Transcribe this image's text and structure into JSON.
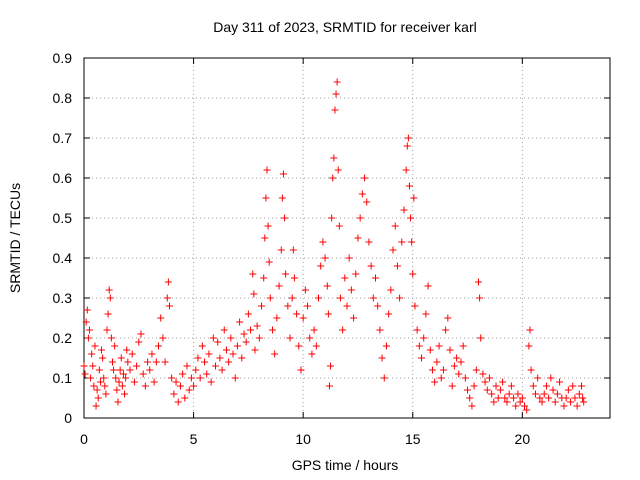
{
  "chart_data": {
    "type": "scatter",
    "title": "Day 311 of 2023, SRMTID for receiver karl",
    "xlabel": "GPS time / hours",
    "ylabel": "SRMTID / TECUs",
    "xlim": [
      0,
      24
    ],
    "ylim": [
      0,
      0.9
    ],
    "xticks": [
      0,
      5,
      10,
      15,
      20
    ],
    "xtick_labels": [
      "0",
      "5",
      "10",
      "15",
      "20"
    ],
    "yticks": [
      0,
      0.1,
      0.2,
      0.3,
      0.4,
      0.5,
      0.6,
      0.7,
      0.8,
      0.9
    ],
    "ytick_labels": [
      "0",
      "0.1",
      "0.2",
      "0.3",
      "0.4",
      "0.5",
      "0.6",
      "0.7",
      "0.8",
      "0.9"
    ],
    "grid": true,
    "marker": "+",
    "marker_color": "#ff0000",
    "series": [
      {
        "name": "SRMTID",
        "color": "#ff0000",
        "points": [
          [
            0.0,
            0.13
          ],
          [
            0.05,
            0.11
          ],
          [
            0.1,
            0.24
          ],
          [
            0.15,
            0.27
          ],
          [
            0.2,
            0.2
          ],
          [
            0.25,
            0.22
          ],
          [
            0.3,
            0.1
          ],
          [
            0.35,
            0.16
          ],
          [
            0.4,
            0.13
          ],
          [
            0.45,
            0.08
          ],
          [
            0.5,
            0.18
          ],
          [
            0.55,
            0.03
          ],
          [
            0.6,
            0.07
          ],
          [
            0.65,
            0.05
          ],
          [
            0.7,
            0.12
          ],
          [
            0.75,
            0.09
          ],
          [
            0.8,
            0.17
          ],
          [
            0.85,
            0.15
          ],
          [
            0.9,
            0.1
          ],
          [
            0.95,
            0.08
          ],
          [
            1.0,
            0.06
          ],
          [
            1.05,
            0.22
          ],
          [
            1.1,
            0.26
          ],
          [
            1.15,
            0.32
          ],
          [
            1.2,
            0.3
          ],
          [
            1.25,
            0.2
          ],
          [
            1.3,
            0.14
          ],
          [
            1.35,
            0.12
          ],
          [
            1.4,
            0.18
          ],
          [
            1.45,
            0.1
          ],
          [
            1.5,
            0.07
          ],
          [
            1.55,
            0.04
          ],
          [
            1.6,
            0.09
          ],
          [
            1.65,
            0.12
          ],
          [
            1.7,
            0.15
          ],
          [
            1.75,
            0.08
          ],
          [
            1.8,
            0.11
          ],
          [
            1.85,
            0.06
          ],
          [
            1.9,
            0.1
          ],
          [
            1.95,
            0.17
          ],
          [
            2.0,
            0.14
          ],
          [
            2.1,
            0.12
          ],
          [
            2.2,
            0.16
          ],
          [
            2.3,
            0.09
          ],
          [
            2.4,
            0.13
          ],
          [
            2.5,
            0.19
          ],
          [
            2.6,
            0.21
          ],
          [
            2.7,
            0.11
          ],
          [
            2.8,
            0.08
          ],
          [
            2.9,
            0.14
          ],
          [
            3.0,
            0.12
          ],
          [
            3.1,
            0.16
          ],
          [
            3.2,
            0.09
          ],
          [
            3.3,
            0.14
          ],
          [
            3.4,
            0.18
          ],
          [
            3.5,
            0.25
          ],
          [
            3.6,
            0.2
          ],
          [
            3.7,
            0.14
          ],
          [
            3.8,
            0.3
          ],
          [
            3.85,
            0.34
          ],
          [
            3.9,
            0.28
          ],
          [
            4.0,
            0.1
          ],
          [
            4.1,
            0.06
          ],
          [
            4.2,
            0.09
          ],
          [
            4.3,
            0.04
          ],
          [
            4.4,
            0.08
          ],
          [
            4.5,
            0.11
          ],
          [
            4.6,
            0.05
          ],
          [
            4.7,
            0.13
          ],
          [
            4.8,
            0.07
          ],
          [
            4.9,
            0.1
          ],
          [
            5.0,
            0.08
          ],
          [
            5.1,
            0.12
          ],
          [
            5.2,
            0.15
          ],
          [
            5.3,
            0.1
          ],
          [
            5.4,
            0.18
          ],
          [
            5.5,
            0.14
          ],
          [
            5.6,
            0.11
          ],
          [
            5.7,
            0.16
          ],
          [
            5.8,
            0.09
          ],
          [
            5.9,
            0.2
          ],
          [
            6.0,
            0.13
          ],
          [
            6.1,
            0.19
          ],
          [
            6.2,
            0.15
          ],
          [
            6.3,
            0.12
          ],
          [
            6.4,
            0.22
          ],
          [
            6.5,
            0.17
          ],
          [
            6.6,
            0.14
          ],
          [
            6.7,
            0.2
          ],
          [
            6.8,
            0.16
          ],
          [
            6.9,
            0.1
          ],
          [
            7.0,
            0.18
          ],
          [
            7.1,
            0.24
          ],
          [
            7.2,
            0.15
          ],
          [
            7.3,
            0.21
          ],
          [
            7.4,
            0.19
          ],
          [
            7.5,
            0.26
          ],
          [
            7.6,
            0.22
          ],
          [
            7.7,
            0.36
          ],
          [
            7.75,
            0.31
          ],
          [
            7.8,
            0.17
          ],
          [
            7.9,
            0.23
          ],
          [
            8.0,
            0.2
          ],
          [
            8.1,
            0.28
          ],
          [
            8.2,
            0.35
          ],
          [
            8.25,
            0.45
          ],
          [
            8.3,
            0.55
          ],
          [
            8.35,
            0.62
          ],
          [
            8.4,
            0.48
          ],
          [
            8.45,
            0.39
          ],
          [
            8.5,
            0.3
          ],
          [
            8.6,
            0.22
          ],
          [
            8.7,
            0.16
          ],
          [
            8.8,
            0.25
          ],
          [
            8.9,
            0.33
          ],
          [
            9.0,
            0.42
          ],
          [
            9.05,
            0.55
          ],
          [
            9.1,
            0.61
          ],
          [
            9.15,
            0.5
          ],
          [
            9.2,
            0.36
          ],
          [
            9.3,
            0.28
          ],
          [
            9.4,
            0.2
          ],
          [
            9.5,
            0.3
          ],
          [
            9.55,
            0.42
          ],
          [
            9.6,
            0.35
          ],
          [
            9.7,
            0.26
          ],
          [
            9.8,
            0.18
          ],
          [
            9.9,
            0.12
          ],
          [
            10.0,
            0.25
          ],
          [
            10.1,
            0.32
          ],
          [
            10.2,
            0.28
          ],
          [
            10.3,
            0.2
          ],
          [
            10.4,
            0.16
          ],
          [
            10.5,
            0.22
          ],
          [
            10.6,
            0.18
          ],
          [
            10.7,
            0.3
          ],
          [
            10.8,
            0.38
          ],
          [
            10.9,
            0.44
          ],
          [
            11.0,
            0.4
          ],
          [
            11.1,
            0.33
          ],
          [
            11.15,
            0.26
          ],
          [
            11.2,
            0.08
          ],
          [
            11.25,
            0.13
          ],
          [
            11.3,
            0.5
          ],
          [
            11.35,
            0.6
          ],
          [
            11.4,
            0.65
          ],
          [
            11.45,
            0.77
          ],
          [
            11.5,
            0.81
          ],
          [
            11.55,
            0.84
          ],
          [
            11.6,
            0.62
          ],
          [
            11.65,
            0.48
          ],
          [
            11.7,
            0.3
          ],
          [
            11.8,
            0.22
          ],
          [
            11.9,
            0.35
          ],
          [
            12.0,
            0.28
          ],
          [
            12.1,
            0.4
          ],
          [
            12.2,
            0.32
          ],
          [
            12.3,
            0.25
          ],
          [
            12.4,
            0.36
          ],
          [
            12.5,
            0.45
          ],
          [
            12.6,
            0.5
          ],
          [
            12.7,
            0.56
          ],
          [
            12.8,
            0.6
          ],
          [
            12.9,
            0.54
          ],
          [
            13.0,
            0.44
          ],
          [
            13.1,
            0.38
          ],
          [
            13.2,
            0.3
          ],
          [
            13.3,
            0.35
          ],
          [
            13.4,
            0.28
          ],
          [
            13.5,
            0.22
          ],
          [
            13.6,
            0.15
          ],
          [
            13.7,
            0.1
          ],
          [
            13.8,
            0.18
          ],
          [
            13.9,
            0.26
          ],
          [
            14.0,
            0.32
          ],
          [
            14.1,
            0.42
          ],
          [
            14.2,
            0.48
          ],
          [
            14.3,
            0.38
          ],
          [
            14.4,
            0.3
          ],
          [
            14.5,
            0.44
          ],
          [
            14.6,
            0.52
          ],
          [
            14.7,
            0.62
          ],
          [
            14.75,
            0.68
          ],
          [
            14.8,
            0.7
          ],
          [
            14.85,
            0.58
          ],
          [
            14.9,
            0.5
          ],
          [
            14.95,
            0.44
          ],
          [
            15.0,
            0.36
          ],
          [
            15.05,
            0.55
          ],
          [
            15.1,
            0.28
          ],
          [
            15.2,
            0.22
          ],
          [
            15.3,
            0.18
          ],
          [
            15.4,
            0.15
          ],
          [
            15.5,
            0.2
          ],
          [
            15.6,
            0.26
          ],
          [
            15.7,
            0.33
          ],
          [
            15.8,
            0.17
          ],
          [
            15.9,
            0.12
          ],
          [
            16.0,
            0.09
          ],
          [
            16.1,
            0.14
          ],
          [
            16.2,
            0.18
          ],
          [
            16.3,
            0.1
          ],
          [
            16.4,
            0.12
          ],
          [
            16.5,
            0.22
          ],
          [
            16.6,
            0.25
          ],
          [
            16.7,
            0.17
          ],
          [
            16.8,
            0.08
          ],
          [
            16.9,
            0.13
          ],
          [
            17.0,
            0.15
          ],
          [
            17.1,
            0.11
          ],
          [
            17.2,
            0.14
          ],
          [
            17.3,
            0.18
          ],
          [
            17.4,
            0.1
          ],
          [
            17.5,
            0.07
          ],
          [
            17.6,
            0.05
          ],
          [
            17.7,
            0.03
          ],
          [
            17.8,
            0.08
          ],
          [
            17.9,
            0.12
          ],
          [
            18.0,
            0.34
          ],
          [
            18.05,
            0.3
          ],
          [
            18.1,
            0.2
          ],
          [
            18.2,
            0.11
          ],
          [
            18.3,
            0.09
          ],
          [
            18.4,
            0.07
          ],
          [
            18.5,
            0.1
          ],
          [
            18.6,
            0.06
          ],
          [
            18.7,
            0.04
          ],
          [
            18.8,
            0.08
          ],
          [
            18.9,
            0.05
          ],
          [
            19.0,
            0.07
          ],
          [
            19.1,
            0.09
          ],
          [
            19.2,
            0.05
          ],
          [
            19.3,
            0.04
          ],
          [
            19.4,
            0.06
          ],
          [
            19.5,
            0.08
          ],
          [
            19.6,
            0.05
          ],
          [
            19.7,
            0.03
          ],
          [
            19.8,
            0.06
          ],
          [
            19.9,
            0.04
          ],
          [
            20.0,
            0.05
          ],
          [
            20.1,
            0.03
          ],
          [
            20.2,
            0.02
          ],
          [
            20.3,
            0.18
          ],
          [
            20.35,
            0.22
          ],
          [
            20.4,
            0.12
          ],
          [
            20.5,
            0.08
          ],
          [
            20.6,
            0.06
          ],
          [
            20.7,
            0.1
          ],
          [
            20.8,
            0.05
          ],
          [
            20.9,
            0.04
          ],
          [
            21.0,
            0.06
          ],
          [
            21.1,
            0.08
          ],
          [
            21.2,
            0.05
          ],
          [
            21.3,
            0.1
          ],
          [
            21.4,
            0.07
          ],
          [
            21.5,
            0.04
          ],
          [
            21.6,
            0.06
          ],
          [
            21.7,
            0.09
          ],
          [
            21.8,
            0.05
          ],
          [
            21.9,
            0.03
          ],
          [
            22.0,
            0.05
          ],
          [
            22.1,
            0.07
          ],
          [
            22.2,
            0.04
          ],
          [
            22.3,
            0.08
          ],
          [
            22.4,
            0.05
          ],
          [
            22.5,
            0.03
          ],
          [
            22.6,
            0.06
          ],
          [
            22.7,
            0.08
          ],
          [
            22.75,
            0.05
          ],
          [
            22.8,
            0.04
          ]
        ]
      }
    ]
  }
}
